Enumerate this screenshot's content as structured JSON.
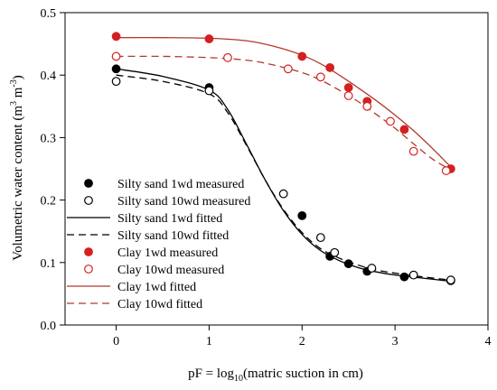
{
  "chart_data": {
    "type": "scatter",
    "xlabel_prefix": "pF = log",
    "xlabel_sub": "10",
    "xlabel_suffix": "(matric suction in cm)",
    "ylabel_text": "Volumetric water content (m",
    "ylabel_exp1": "3",
    "ylabel_mid": " m",
    "ylabel_exp2": "-3",
    "ylabel_end": ")",
    "xlim": [
      -0.55,
      4.0
    ],
    "ylim": [
      0.0,
      0.5
    ],
    "xticks": [
      0,
      1,
      2,
      3,
      4
    ],
    "xtick_labels": [
      "0",
      "1",
      "2",
      "3",
      "4"
    ],
    "yticks": [
      0.0,
      0.1,
      0.2,
      0.3,
      0.4,
      0.5
    ],
    "ytick_labels": [
      "0.0",
      "0.1",
      "0.2",
      "0.3",
      "0.4",
      "0.5"
    ],
    "legend_position": "bottom-left",
    "colors": {
      "black": "#000000",
      "red": "#d42020",
      "clay_line": "#b03a2e"
    },
    "series": [
      {
        "name": "Silty sand 1wd measured",
        "kind": "points",
        "marker": "filled",
        "color": "#000000",
        "x": [
          0,
          1,
          2,
          2.3,
          2.5,
          2.7,
          3.1,
          3.6
        ],
        "y": [
          0.41,
          0.38,
          0.175,
          0.11,
          0.098,
          0.086,
          0.077,
          0.071
        ]
      },
      {
        "name": "Silty sand 10wd measured",
        "kind": "points",
        "marker": "open",
        "color": "#000000",
        "x": [
          0,
          1,
          1.8,
          2.2,
          2.35,
          2.75,
          3.2,
          3.6
        ],
        "y": [
          0.39,
          0.375,
          0.21,
          0.14,
          0.116,
          0.091,
          0.08,
          0.072
        ]
      },
      {
        "name": "Silty sand 1wd fitted",
        "kind": "line",
        "dash": "solid",
        "color": "#000000",
        "x": [
          0,
          0.5,
          1,
          1.2,
          1.4,
          1.6,
          1.8,
          2.0,
          2.2,
          2.4,
          2.6,
          2.8,
          3.0,
          3.3,
          3.6
        ],
        "y": [
          0.41,
          0.398,
          0.376,
          0.345,
          0.29,
          0.233,
          0.183,
          0.145,
          0.119,
          0.103,
          0.092,
          0.085,
          0.08,
          0.075,
          0.07
        ]
      },
      {
        "name": "Silty sand 10wd fitted",
        "kind": "line",
        "dash": "dashed",
        "color": "#000000",
        "x": [
          0,
          0.5,
          1,
          1.2,
          1.4,
          1.6,
          1.8,
          2.0,
          2.2,
          2.4,
          2.6,
          2.8,
          3.0,
          3.3,
          3.6
        ],
        "y": [
          0.4,
          0.39,
          0.37,
          0.34,
          0.288,
          0.233,
          0.185,
          0.148,
          0.122,
          0.107,
          0.096,
          0.088,
          0.083,
          0.077,
          0.072
        ]
      },
      {
        "name": "Clay 1wd measured",
        "kind": "points",
        "marker": "filled",
        "color": "#d42020",
        "x": [
          0,
          1,
          2,
          2.3,
          2.5,
          2.7,
          3.1,
          3.6
        ],
        "y": [
          0.462,
          0.458,
          0.43,
          0.412,
          0.38,
          0.358,
          0.313,
          0.25
        ]
      },
      {
        "name": "Clay 10wd measured",
        "kind": "points",
        "marker": "open",
        "color": "#d42020",
        "x": [
          0,
          1.2,
          1.85,
          2.2,
          2.5,
          2.7,
          2.95,
          3.2,
          3.55
        ],
        "y": [
          0.43,
          0.428,
          0.41,
          0.397,
          0.367,
          0.35,
          0.326,
          0.278,
          0.247
        ]
      },
      {
        "name": "Clay 1wd fitted",
        "kind": "line",
        "dash": "solid",
        "color": "#b03a2e",
        "x": [
          0,
          0.5,
          1.0,
          1.4,
          1.7,
          2.0,
          2.2,
          2.4,
          2.6,
          2.8,
          3.0,
          3.2,
          3.4,
          3.6
        ],
        "y": [
          0.46,
          0.46,
          0.459,
          0.455,
          0.446,
          0.432,
          0.418,
          0.4,
          0.38,
          0.359,
          0.336,
          0.311,
          0.283,
          0.253
        ]
      },
      {
        "name": "Clay 10wd fitted",
        "kind": "line",
        "dash": "dashed",
        "color": "#b03a2e",
        "x": [
          0,
          0.5,
          1.0,
          1.4,
          1.7,
          2.0,
          2.2,
          2.4,
          2.6,
          2.8,
          3.0,
          3.2,
          3.4,
          3.6
        ],
        "y": [
          0.43,
          0.43,
          0.428,
          0.424,
          0.416,
          0.404,
          0.392,
          0.376,
          0.358,
          0.337,
          0.315,
          0.29,
          0.266,
          0.248
        ]
      }
    ]
  }
}
